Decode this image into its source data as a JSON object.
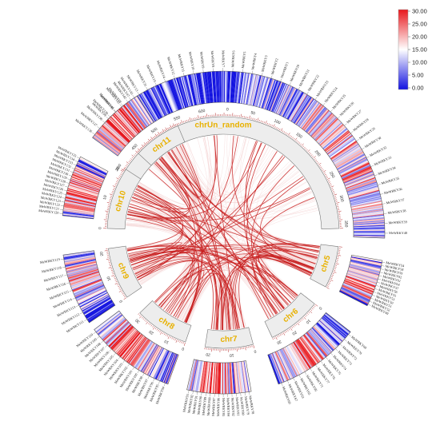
{
  "figure": {
    "type": "circos-collinearity-plot"
  },
  "chromosomes": [
    {
      "name": "chrUn_random",
      "ticks": [
        "400",
        "450",
        "500",
        "550",
        "600",
        "0",
        "50",
        "100",
        "150",
        "200",
        "250",
        "300",
        "350"
      ]
    },
    {
      "name": "chr5",
      "ticks": []
    },
    {
      "name": "chr6",
      "ticks": [
        "0",
        "10",
        "20",
        "30"
      ]
    },
    {
      "name": "chr7",
      "ticks": [
        "0",
        "10",
        "20"
      ]
    },
    {
      "name": "chr8",
      "ticks": [
        "0",
        "10",
        "20",
        "30"
      ]
    },
    {
      "name": "chr9",
      "ticks": [
        "0",
        "10",
        "20"
      ]
    },
    {
      "name": "chr10",
      "ticks": [
        "0",
        "10",
        "20"
      ]
    },
    {
      "name": "chr11",
      "ticks": []
    }
  ],
  "gene_groups": [
    {
      "segment": "top",
      "genes": [
        "MeWRKY99",
        "MeWRKY83",
        "MeWRKY69",
        "MeWRKY47",
        "MeWRKY13",
        "MeWRKY31",
        "MeWRKY19",
        "MeWRKY14",
        "MeWRKY12",
        "MeWRKY11",
        "MeWRKY10",
        "MeWRKY9",
        "MeWRKY8",
        "MeWRKY7",
        "MeWRKY6",
        "MeWRKY5",
        "MeWRKY4",
        "MeWRKY3",
        "MeWRKY2",
        "MeWRKY1",
        "MeWRKY20",
        "MeWRKY21",
        "MeWRKY22",
        "MeWRKY23",
        "MeWRKY24",
        "MeWRKY25",
        "MeWRKY26",
        "MeWRKY27",
        "MeWRKY28",
        "MeWRKY29",
        "MeWRKY30",
        "MeWRKY32",
        "MeWRKY33",
        "MeWRKY34",
        "MeWRKY35",
        "MeWRKY36",
        "MeWRKY37",
        "MeWRKY38",
        "MeWRKY39",
        "MeWRKY40"
      ]
    },
    {
      "segment": "chr5",
      "genes": [
        "MeWRKY54",
        "MeWRKY58",
        "MeWRKY59",
        "MeWRKY62",
        "MeWRKY61",
        "MeWRKY64",
        "MeWRKY57",
        "MeWRKY56",
        "MeWRKY55",
        "MeWRKY53",
        "MeWRKY50",
        "MeWRKY51",
        "MeWRKY52",
        "MeWRKY49"
      ]
    },
    {
      "segment": "chr6",
      "genes": [
        "MeWRKY68",
        "MeWRKY70",
        "MeWRKY72",
        "MeWRKY73",
        "MeWRKY74",
        "MeWRKY75",
        "MeWRKY76",
        "MeWRKY77",
        "MeWRKY71",
        "MeWRKY66",
        "MeWRKY65",
        "MeWRKY63",
        "MeWRKY67",
        "MeWRKY60"
      ]
    },
    {
      "segment": "chr7",
      "genes": [
        "MeWRKY78",
        "MeWRKY79",
        "MeWRKY80",
        "MeWRKY81",
        "MeWRKY82",
        "MeWRKY84",
        "MeWRKY85",
        "MeWRKY86",
        "MeWRKY87",
        "MeWRKY88",
        "MeWRKY89",
        "MeWRKY90",
        "MeWRKY91",
        "MeWRKY92",
        "MeWRKY93"
      ]
    },
    {
      "segment": "chr8",
      "genes": [
        "MeWRKY94",
        "MeWRKY95",
        "MeWRKY96",
        "MeWRKY97",
        "MeWRKY98",
        "MeWRKY100",
        "MeWRKY101",
        "MeWRKY102",
        "MeWRKY103",
        "MeWRKY104",
        "MeWRKY105",
        "MeWRKY106",
        "MeWRKY107",
        "MeWRKY108",
        "MeWRKY109",
        "MeWRKY110"
      ]
    },
    {
      "segment": "chr9",
      "genes": [
        "MeWRKY111",
        "MeWRKY112",
        "MeWRKY113",
        "MeWRKY114",
        "MeWRKY115",
        "MeWRKY116",
        "MeWRKY117",
        "MeWRKY118",
        "MeWRKY119"
      ]
    },
    {
      "segment": "chr10",
      "genes": [
        "MeWRKY120",
        "MeWRKY121",
        "MeWRKY122",
        "MeWRKY123",
        "MeWRKY124",
        "MeWRKY125",
        "MeWRKY126",
        "MeWRKY127",
        "MeWRKY128",
        "MeWRKY129",
        "MeWRKY130",
        "MeWRKY131",
        "MeWRKY132",
        "MeWRKY133",
        "MeWRKY134",
        "MeWRKY135"
      ]
    },
    {
      "segment": "chr11",
      "genes": [
        "MeWRKY136",
        "MeWRKY137",
        "MeWRKY138",
        "MeWRKY139",
        "MeWRKY140",
        "MeWRKY141",
        "MeWRKY142",
        "MeWRKY143"
      ]
    }
  ],
  "legend": {
    "ticks": [
      "30.00",
      "25.00",
      "20.00",
      "15.00",
      "10.00",
      "5.00",
      "0.00"
    ],
    "colors": {
      "high": "#e8161b",
      "mid": "#ffffff",
      "low": "#1212e0"
    },
    "min": 0,
    "max": 30
  },
  "links": {
    "highlight_color": "#c81e1e",
    "background_color": "#f4d2d2"
  }
}
